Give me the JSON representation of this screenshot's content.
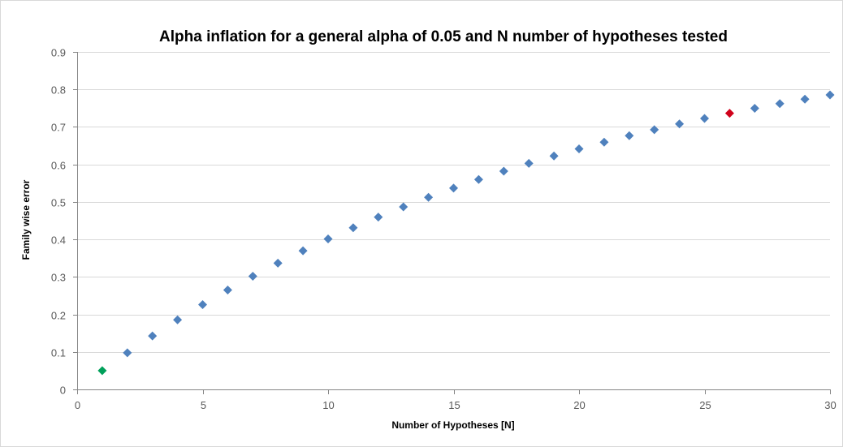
{
  "chart_data": {
    "type": "scatter",
    "title": "Alpha inflation for a general alpha of 0.05 and N number of hypotheses tested",
    "xlabel": "Number of Hypotheses [N]",
    "ylabel": "Family wise error",
    "xlim": [
      0,
      30
    ],
    "ylim": [
      0,
      0.9
    ],
    "x_ticks": [
      0,
      5,
      10,
      15,
      20,
      25,
      30
    ],
    "y_ticks": [
      0,
      0.1,
      0.2,
      0.3,
      0.4,
      0.5,
      0.6,
      0.7,
      0.8,
      0.9
    ],
    "x_tick_labels": [
      "0",
      "5",
      "10",
      "15",
      "20",
      "25",
      "30"
    ],
    "y_tick_labels": [
      "0",
      "0.1",
      "0.2",
      "0.3",
      "0.4",
      "0.5",
      "0.6",
      "0.7",
      "0.8",
      "0.9"
    ],
    "grid": "horizontal",
    "legend": "none",
    "marker": "diamond",
    "default_color": "#4f81bd",
    "points": [
      {
        "x": 1,
        "y": 0.05,
        "color": "#00a05a"
      },
      {
        "x": 2,
        "y": 0.0975
      },
      {
        "x": 3,
        "y": 0.1426
      },
      {
        "x": 4,
        "y": 0.1855
      },
      {
        "x": 5,
        "y": 0.2262
      },
      {
        "x": 6,
        "y": 0.2649
      },
      {
        "x": 7,
        "y": 0.3017
      },
      {
        "x": 8,
        "y": 0.3366
      },
      {
        "x": 9,
        "y": 0.3698
      },
      {
        "x": 10,
        "y": 0.4013
      },
      {
        "x": 11,
        "y": 0.4312
      },
      {
        "x": 12,
        "y": 0.4596
      },
      {
        "x": 13,
        "y": 0.4867
      },
      {
        "x": 14,
        "y": 0.5123
      },
      {
        "x": 15,
        "y": 0.5367
      },
      {
        "x": 16,
        "y": 0.5599
      },
      {
        "x": 17,
        "y": 0.5819
      },
      {
        "x": 18,
        "y": 0.6028
      },
      {
        "x": 19,
        "y": 0.6226
      },
      {
        "x": 20,
        "y": 0.6415
      },
      {
        "x": 21,
        "y": 0.6594
      },
      {
        "x": 22,
        "y": 0.6765
      },
      {
        "x": 23,
        "y": 0.6926
      },
      {
        "x": 24,
        "y": 0.708
      },
      {
        "x": 25,
        "y": 0.7226
      },
      {
        "x": 26,
        "y": 0.7365,
        "color": "#d0021b"
      },
      {
        "x": 27,
        "y": 0.7497
      },
      {
        "x": 28,
        "y": 0.7622
      },
      {
        "x": 29,
        "y": 0.774
      },
      {
        "x": 30,
        "y": 0.7854
      }
    ]
  }
}
